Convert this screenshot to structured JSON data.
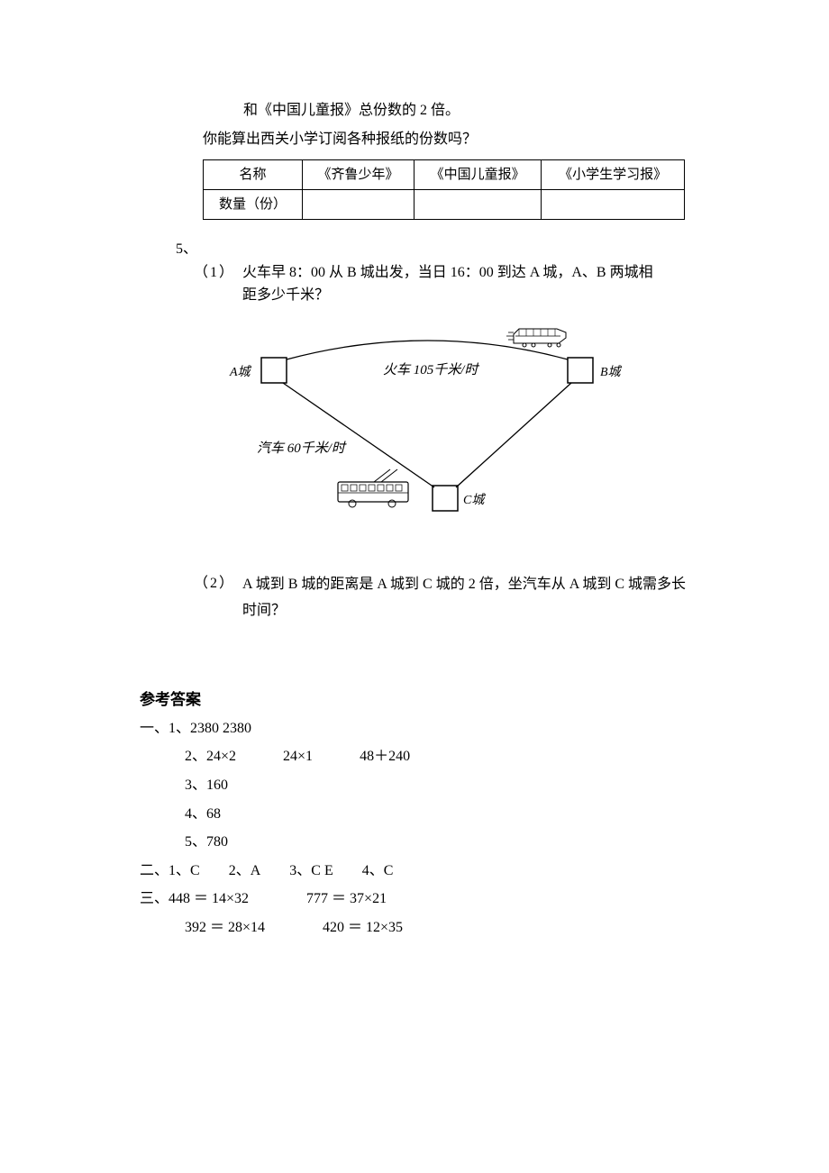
{
  "intro": {
    "line1": "和《中国儿童报》总份数的 2 倍。",
    "line2": "你能算出西关小学订阅各种报纸的份数吗？"
  },
  "table": {
    "headers": [
      "名称",
      "《齐鲁少年》",
      "《中国儿童报》",
      "《小学生学习报》"
    ],
    "row2_label": "数量（份）",
    "row2_cells": [
      "",
      "",
      ""
    ]
  },
  "q5": {
    "label": "5、",
    "part1_num": "（1）",
    "part1_line1": "火车早 8：00 从 B 城出发，当日 16：00 到达 A 城，A、B 两城相",
    "part1_line2_word": "距多少千米？",
    "part2_num": "（2）",
    "part2_text": "A 城到 B 城的距离是 A 城到 C 城的 2 倍，坐汽车从 A 城到 C 城需多长时间？"
  },
  "diagram": {
    "a_label": "A城",
    "b_label": "B城",
    "c_label": "C城",
    "train_label": "火车   105千米/时",
    "car_label": "汽车  60千米/时",
    "stroke": "#000000",
    "font_family": "SimSun",
    "font_size": 14,
    "font_size_italic": 15
  },
  "answers": {
    "title": "参考答案",
    "section1": {
      "label": "一、",
      "item1": "1、2380     2380",
      "item2_parts": [
        "2、24×2",
        "24×1",
        "48＋240"
      ],
      "item3": "3、160",
      "item4": "4、68",
      "item5": "5、780"
    },
    "section2": {
      "label": "二、",
      "items": [
        "1、C",
        "2、A",
        "3、C  E",
        "4、C"
      ]
    },
    "section3": {
      "label": "三、",
      "row1": [
        "448 ＝ 14×32",
        "777 ＝ 37×21"
      ],
      "row2": [
        "392 ＝ 28×14",
        "420 ＝ 12×35"
      ]
    }
  }
}
